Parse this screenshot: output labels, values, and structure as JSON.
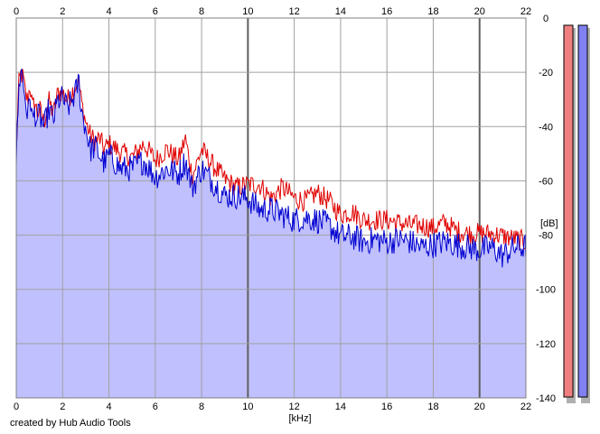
{
  "chart_data": {
    "type": "area",
    "xlabel": "[kHz]",
    "ylabel": "[dB]",
    "xlim": [
      0,
      22
    ],
    "ylim": [
      -140,
      0
    ],
    "xticks": [
      0,
      2,
      4,
      6,
      8,
      10,
      12,
      14,
      16,
      18,
      20,
      22
    ],
    "yticks": [
      0,
      -20,
      -40,
      -60,
      -80,
      -100,
      -120,
      -140
    ],
    "ytick_labels": [
      "0",
      "-20",
      "-40",
      "-60",
      "-80",
      "-100",
      "-120",
      "-140"
    ],
    "grid": true,
    "colors": {
      "red": "#e00000",
      "blue": "#0000d0",
      "fill": "#c0c0ff",
      "meter_red": "#f08080",
      "meter_blue": "#8080f0"
    },
    "series": [
      {
        "color": "red",
        "x": [
          0,
          0.1,
          0.2,
          0.3,
          0.4,
          0.5,
          0.6,
          0.7,
          0.8,
          0.9,
          1.0,
          1.2,
          1.4,
          1.6,
          1.8,
          2.0,
          2.2,
          2.4,
          2.6,
          2.7,
          2.8,
          3.0,
          3.2,
          3.4,
          3.6,
          3.8,
          4.0,
          4.5,
          5.0,
          5.5,
          6.0,
          6.5,
          7.0,
          7.3,
          7.6,
          8.0,
          8.5,
          9.0,
          9.5,
          10.0,
          10.5,
          11.0,
          11.5,
          12.0,
          12.5,
          13.0,
          13.5,
          14.0,
          14.5,
          15.0,
          15.5,
          16.0,
          16.5,
          17.0,
          17.5,
          18.0,
          18.5,
          19.0,
          19.5,
          20.0,
          20.5,
          21.0,
          21.5,
          22.0
        ],
        "y": [
          -50,
          -25,
          -20,
          -22,
          -28,
          -30,
          -24,
          -33,
          -30,
          -35,
          -33,
          -38,
          -30,
          -35,
          -27,
          -27,
          -30,
          -27,
          -24,
          -23,
          -30,
          -38,
          -43,
          -45,
          -44,
          -48,
          -46,
          -49,
          -51,
          -46,
          -52,
          -48,
          -52,
          -44,
          -58,
          -48,
          -54,
          -59,
          -62,
          -61,
          -61,
          -66,
          -62,
          -66,
          -67,
          -64,
          -67,
          -72,
          -71,
          -74,
          -74,
          -74,
          -75,
          -76,
          -76,
          -77,
          -75,
          -78,
          -79,
          -79,
          -79,
          -80,
          -81,
          -82
        ]
      },
      {
        "color": "blue",
        "x": [
          0,
          0.1,
          0.2,
          0.3,
          0.4,
          0.5,
          0.6,
          0.7,
          0.8,
          0.9,
          1.0,
          1.2,
          1.4,
          1.6,
          1.8,
          2.0,
          2.2,
          2.4,
          2.6,
          2.7,
          2.8,
          3.0,
          3.2,
          3.4,
          3.6,
          3.8,
          4.0,
          4.5,
          5.0,
          5.5,
          6.0,
          6.5,
          7.0,
          7.3,
          7.6,
          8.0,
          8.5,
          9.0,
          9.5,
          10.0,
          10.5,
          11.0,
          11.5,
          12.0,
          12.5,
          13.0,
          13.5,
          14.0,
          14.5,
          15.0,
          15.5,
          16.0,
          16.5,
          17.0,
          17.5,
          18.0,
          18.5,
          19.0,
          19.5,
          20.0,
          20.5,
          21.0,
          21.5,
          22.0
        ],
        "y": [
          -52,
          -28,
          -17,
          -24,
          -30,
          -36,
          -27,
          -38,
          -34,
          -37,
          -35,
          -40,
          -33,
          -37,
          -30,
          -29,
          -33,
          -30,
          -26,
          -22,
          -33,
          -40,
          -48,
          -47,
          -50,
          -53,
          -50,
          -55,
          -55,
          -52,
          -58,
          -55,
          -57,
          -52,
          -62,
          -55,
          -60,
          -65,
          -65,
          -66,
          -70,
          -70,
          -72,
          -74,
          -73,
          -74,
          -76,
          -80,
          -80,
          -82,
          -81,
          -82,
          -81,
          -82,
          -84,
          -83,
          -82,
          -83,
          -84,
          -85,
          -84,
          -87,
          -84,
          -84
        ]
      }
    ]
  },
  "footer": {
    "credit": "created by Hub Audio Tools"
  }
}
